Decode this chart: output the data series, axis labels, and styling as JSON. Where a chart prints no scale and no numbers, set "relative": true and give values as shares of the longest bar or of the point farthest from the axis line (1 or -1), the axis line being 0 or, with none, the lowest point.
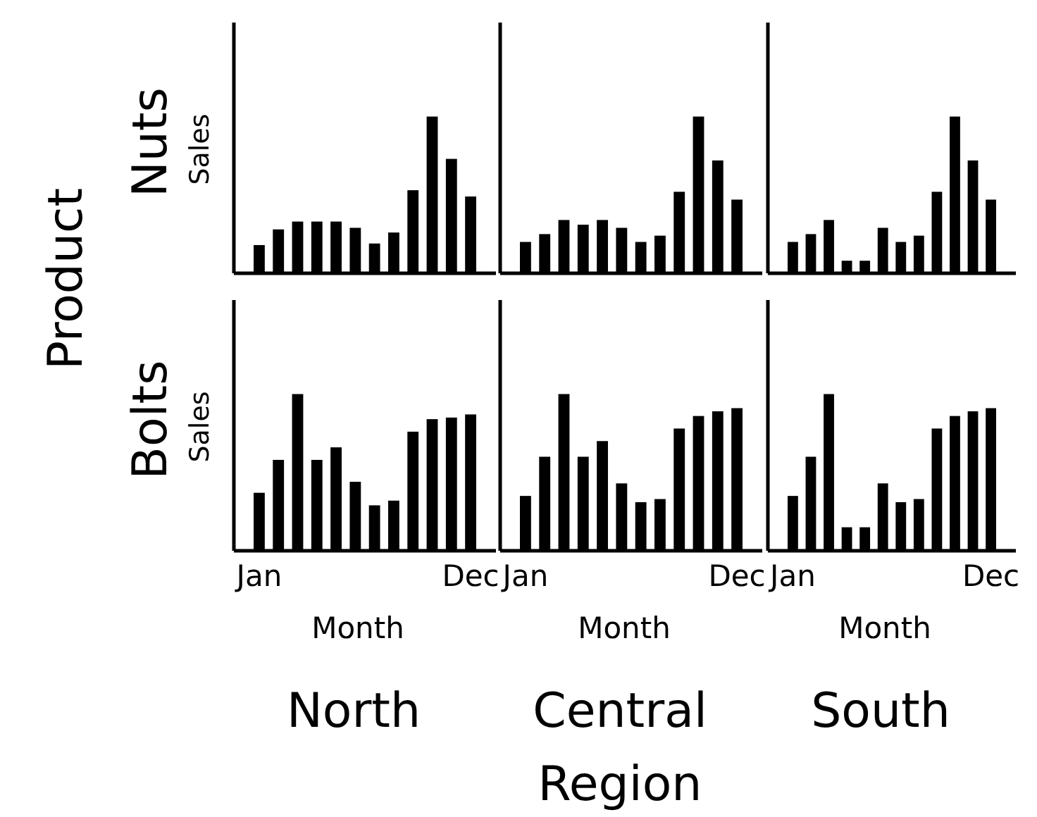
{
  "chart_data": [
    {
      "type": "bar",
      "relative": true,
      "ylabel": "Sales",
      "categories": [
        null,
        null,
        null,
        null,
        null,
        null,
        null,
        null,
        null,
        null,
        null,
        null
      ],
      "color": "#000000",
      "annotations": [
        "Nuts",
        "Product"
      ],
      "values": [
        0.18,
        0.28,
        0.33,
        0.33,
        0.33,
        0.29,
        0.19,
        0.26,
        0.53,
        1,
        0.73,
        0.49
      ]
    },
    {
      "type": "bar",
      "relative": true,
      "categories": [
        null,
        null,
        null,
        null,
        null,
        null,
        null,
        null,
        null,
        null,
        null,
        null
      ],
      "color": "#000000",
      "values": [
        0.2,
        0.25,
        0.34,
        0.31,
        0.34,
        0.29,
        0.2,
        0.24,
        0.52,
        1,
        0.72,
        0.47
      ]
    },
    {
      "type": "bar",
      "relative": true,
      "categories": [
        null,
        null,
        null,
        null,
        null,
        null,
        null,
        null,
        null,
        null,
        null,
        null
      ],
      "color": "#000000",
      "values": [
        0.2,
        0.25,
        0.34,
        0.08,
        0.08,
        0.29,
        0.2,
        0.24,
        0.52,
        1,
        0.72,
        0.47
      ]
    },
    {
      "type": "bar",
      "relative": true,
      "ylabel": "Sales",
      "xlabel": "Month",
      "categories": [
        "Jan",
        null,
        null,
        null,
        null,
        null,
        null,
        null,
        null,
        null,
        null,
        "Dec"
      ],
      "tick_labels": "x",
      "color": "#000000",
      "annotations": [
        "Bolts",
        "North"
      ],
      "values": [
        0.37,
        0.58,
        1,
        0.58,
        0.66,
        0.44,
        0.29,
        0.32,
        0.76,
        0.84,
        0.85,
        0.87
      ]
    },
    {
      "type": "bar",
      "relative": true,
      "xlabel": "Month",
      "categories": [
        "Jan",
        null,
        null,
        null,
        null,
        null,
        null,
        null,
        null,
        null,
        null,
        "Dec"
      ],
      "tick_labels": "x",
      "color": "#000000",
      "annotations": [
        "Central",
        "Region"
      ],
      "values": [
        0.35,
        0.6,
        1,
        0.6,
        0.7,
        0.43,
        0.31,
        0.33,
        0.78,
        0.86,
        0.89,
        0.91
      ]
    },
    {
      "type": "bar",
      "relative": true,
      "xlabel": "Month",
      "categories": [
        "Jan",
        null,
        null,
        null,
        null,
        null,
        null,
        null,
        null,
        null,
        null,
        "Dec"
      ],
      "tick_labels": "x",
      "color": "#000000",
      "annotations": [
        "South"
      ],
      "values": [
        0.35,
        0.6,
        1,
        0.15,
        0.15,
        0.43,
        0.31,
        0.33,
        0.78,
        0.86,
        0.89,
        0.91
      ]
    }
  ]
}
